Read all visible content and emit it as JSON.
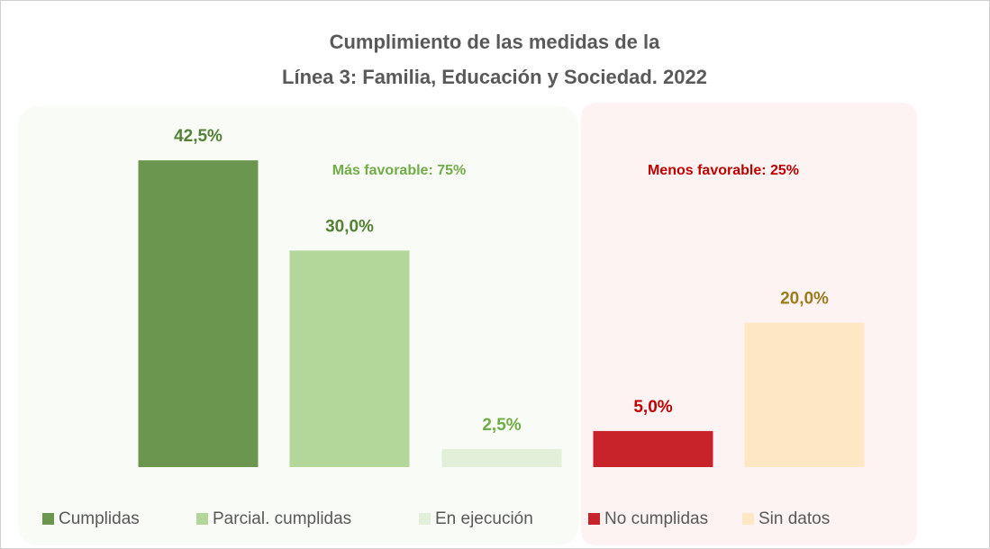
{
  "chart_data": {
    "type": "bar",
    "title": [
      "Cumplimiento de las medidas de la",
      "Línea 3: Familia, Educación y Sociedad. 2022"
    ],
    "categories": [
      "Cumplidas",
      "Parcial. cumplidas",
      "En ejecución",
      "No cumplidas",
      "Sin datos"
    ],
    "values": [
      42.5,
      30.0,
      2.5,
      5.0,
      20.0
    ],
    "value_labels": [
      "42,5%",
      "30,0%",
      "2,5%",
      "5,0%",
      "20,0%"
    ],
    "colors": [
      "#6a964f",
      "#b3d79b",
      "#e2efd9",
      "#c8232a",
      "#fde7c4"
    ],
    "label_colors": [
      "#538135",
      "#538135",
      "#70ad47",
      "#c00000",
      "#9c7a1e"
    ],
    "annotations": [
      {
        "text": "Más favorable: 75%",
        "color": "#70ad47"
      },
      {
        "text": "Menos favorable: 25%",
        "color": "#c00000"
      }
    ]
  }
}
